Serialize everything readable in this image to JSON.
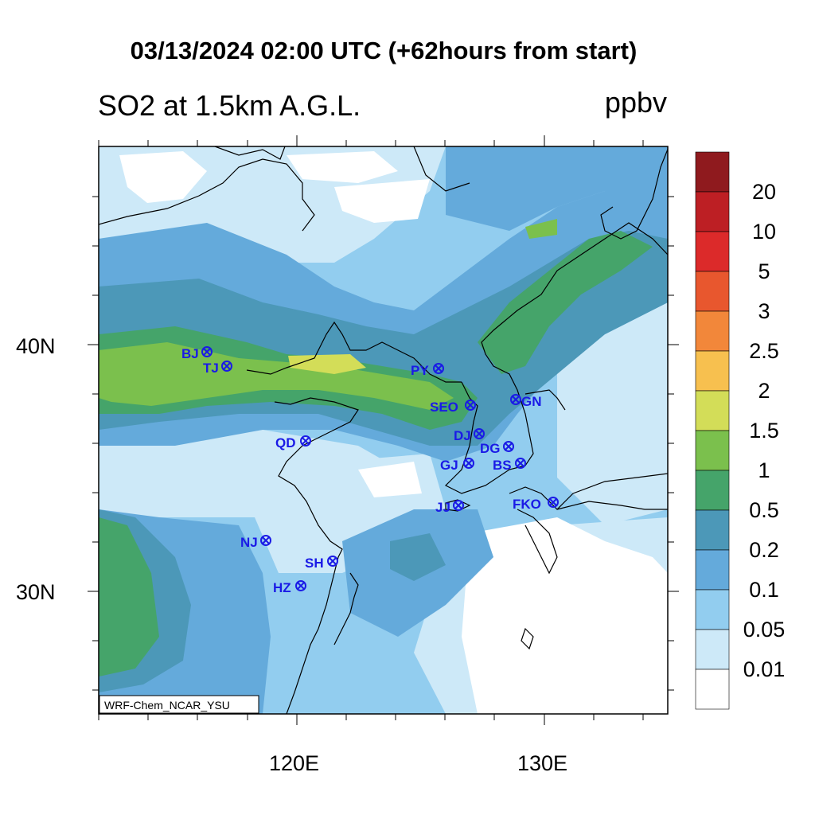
{
  "title": "03/13/2024 02:00 UTC (+62hours from start)",
  "subtitle": "SO2 at 1.5km A.G.L.",
  "units": "ppbv",
  "credit": "WRF-Chem_NCAR_YSU",
  "axes": {
    "lon_ticks": [
      "120E",
      "130E"
    ],
    "lat_ticks": [
      "40N",
      "30N"
    ]
  },
  "colorbar": {
    "labels": [
      "20",
      "10",
      "5",
      "3",
      "2.5",
      "2",
      "1.5",
      "1",
      "0.5",
      "0.2",
      "0.1",
      "0.05",
      "0.01"
    ],
    "colors": [
      "#8f1a1e",
      "#bd1f24",
      "#dc2a2a",
      "#e8572e",
      "#f2873a",
      "#f7c04f",
      "#d3dd58",
      "#7bc04d",
      "#45a46a",
      "#4c98b8",
      "#64aadb",
      "#92cdef",
      "#cde9f8",
      "#ffffff"
    ]
  },
  "stations": [
    {
      "code": "BJ"
    },
    {
      "code": "TJ"
    },
    {
      "code": "PY"
    },
    {
      "code": "SEO"
    },
    {
      "code": "GN"
    },
    {
      "code": "QD"
    },
    {
      "code": "DJ"
    },
    {
      "code": "DG"
    },
    {
      "code": "GJ"
    },
    {
      "code": "BS"
    },
    {
      "code": "JJ"
    },
    {
      "code": "FKO"
    },
    {
      "code": "NJ"
    },
    {
      "code": "SH"
    },
    {
      "code": "HZ"
    }
  ]
}
